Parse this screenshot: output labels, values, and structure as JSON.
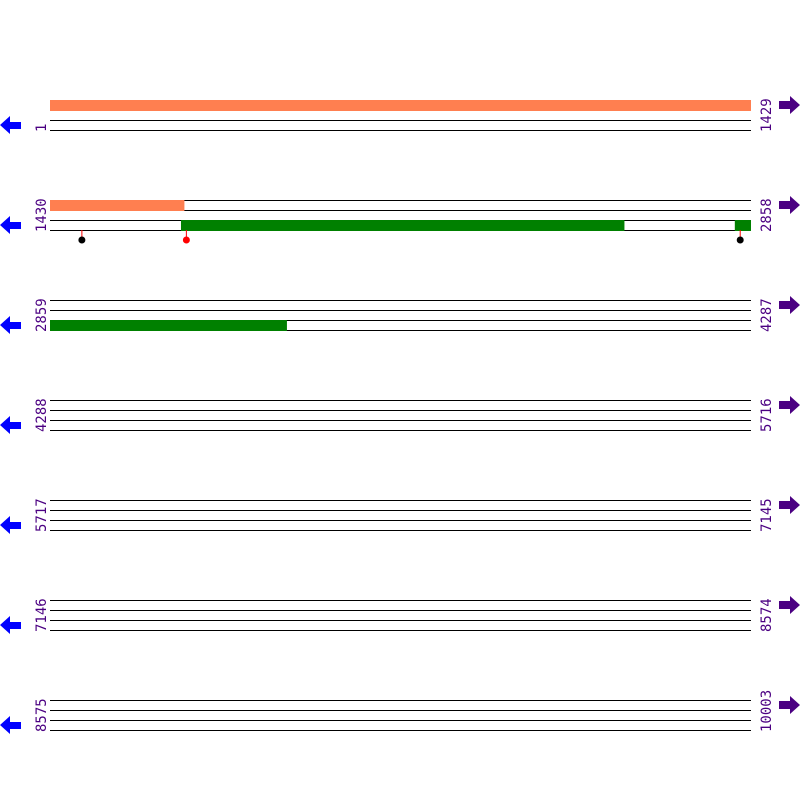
{
  "rows": [
    {
      "start": 1,
      "end": 1429
    },
    {
      "start": 1430,
      "end": 2858
    },
    {
      "start": 2859,
      "end": 4287
    },
    {
      "start": 4288,
      "end": 5716
    },
    {
      "start": 5717,
      "end": 7145
    },
    {
      "start": 7146,
      "end": 8574
    },
    {
      "start": 8575,
      "end": 10003
    }
  ],
  "bases_per_row": 1429,
  "features": [
    {
      "type": "orange",
      "track": 0,
      "from": 1,
      "to": 1703,
      "color": "#ff7f50"
    },
    {
      "type": "green",
      "track": 2,
      "from": 1697,
      "to": 2600,
      "color": "#008000"
    },
    {
      "type": "green",
      "track": 2,
      "from": 2826,
      "to": 3341,
      "color": "#008000"
    }
  ],
  "markers": [
    {
      "pos": 1495,
      "color": "#000000"
    },
    {
      "pos": 1708,
      "color": "#ff0000"
    },
    {
      "pos": 2837,
      "color": "#000000"
    }
  ],
  "colors": {
    "left_arrow": "#0000ff",
    "right_arrow": "#4b0082",
    "label": "#4b0082"
  },
  "icons": {
    "left": "arrow-left-icon",
    "right": "arrow-right-icon"
  }
}
